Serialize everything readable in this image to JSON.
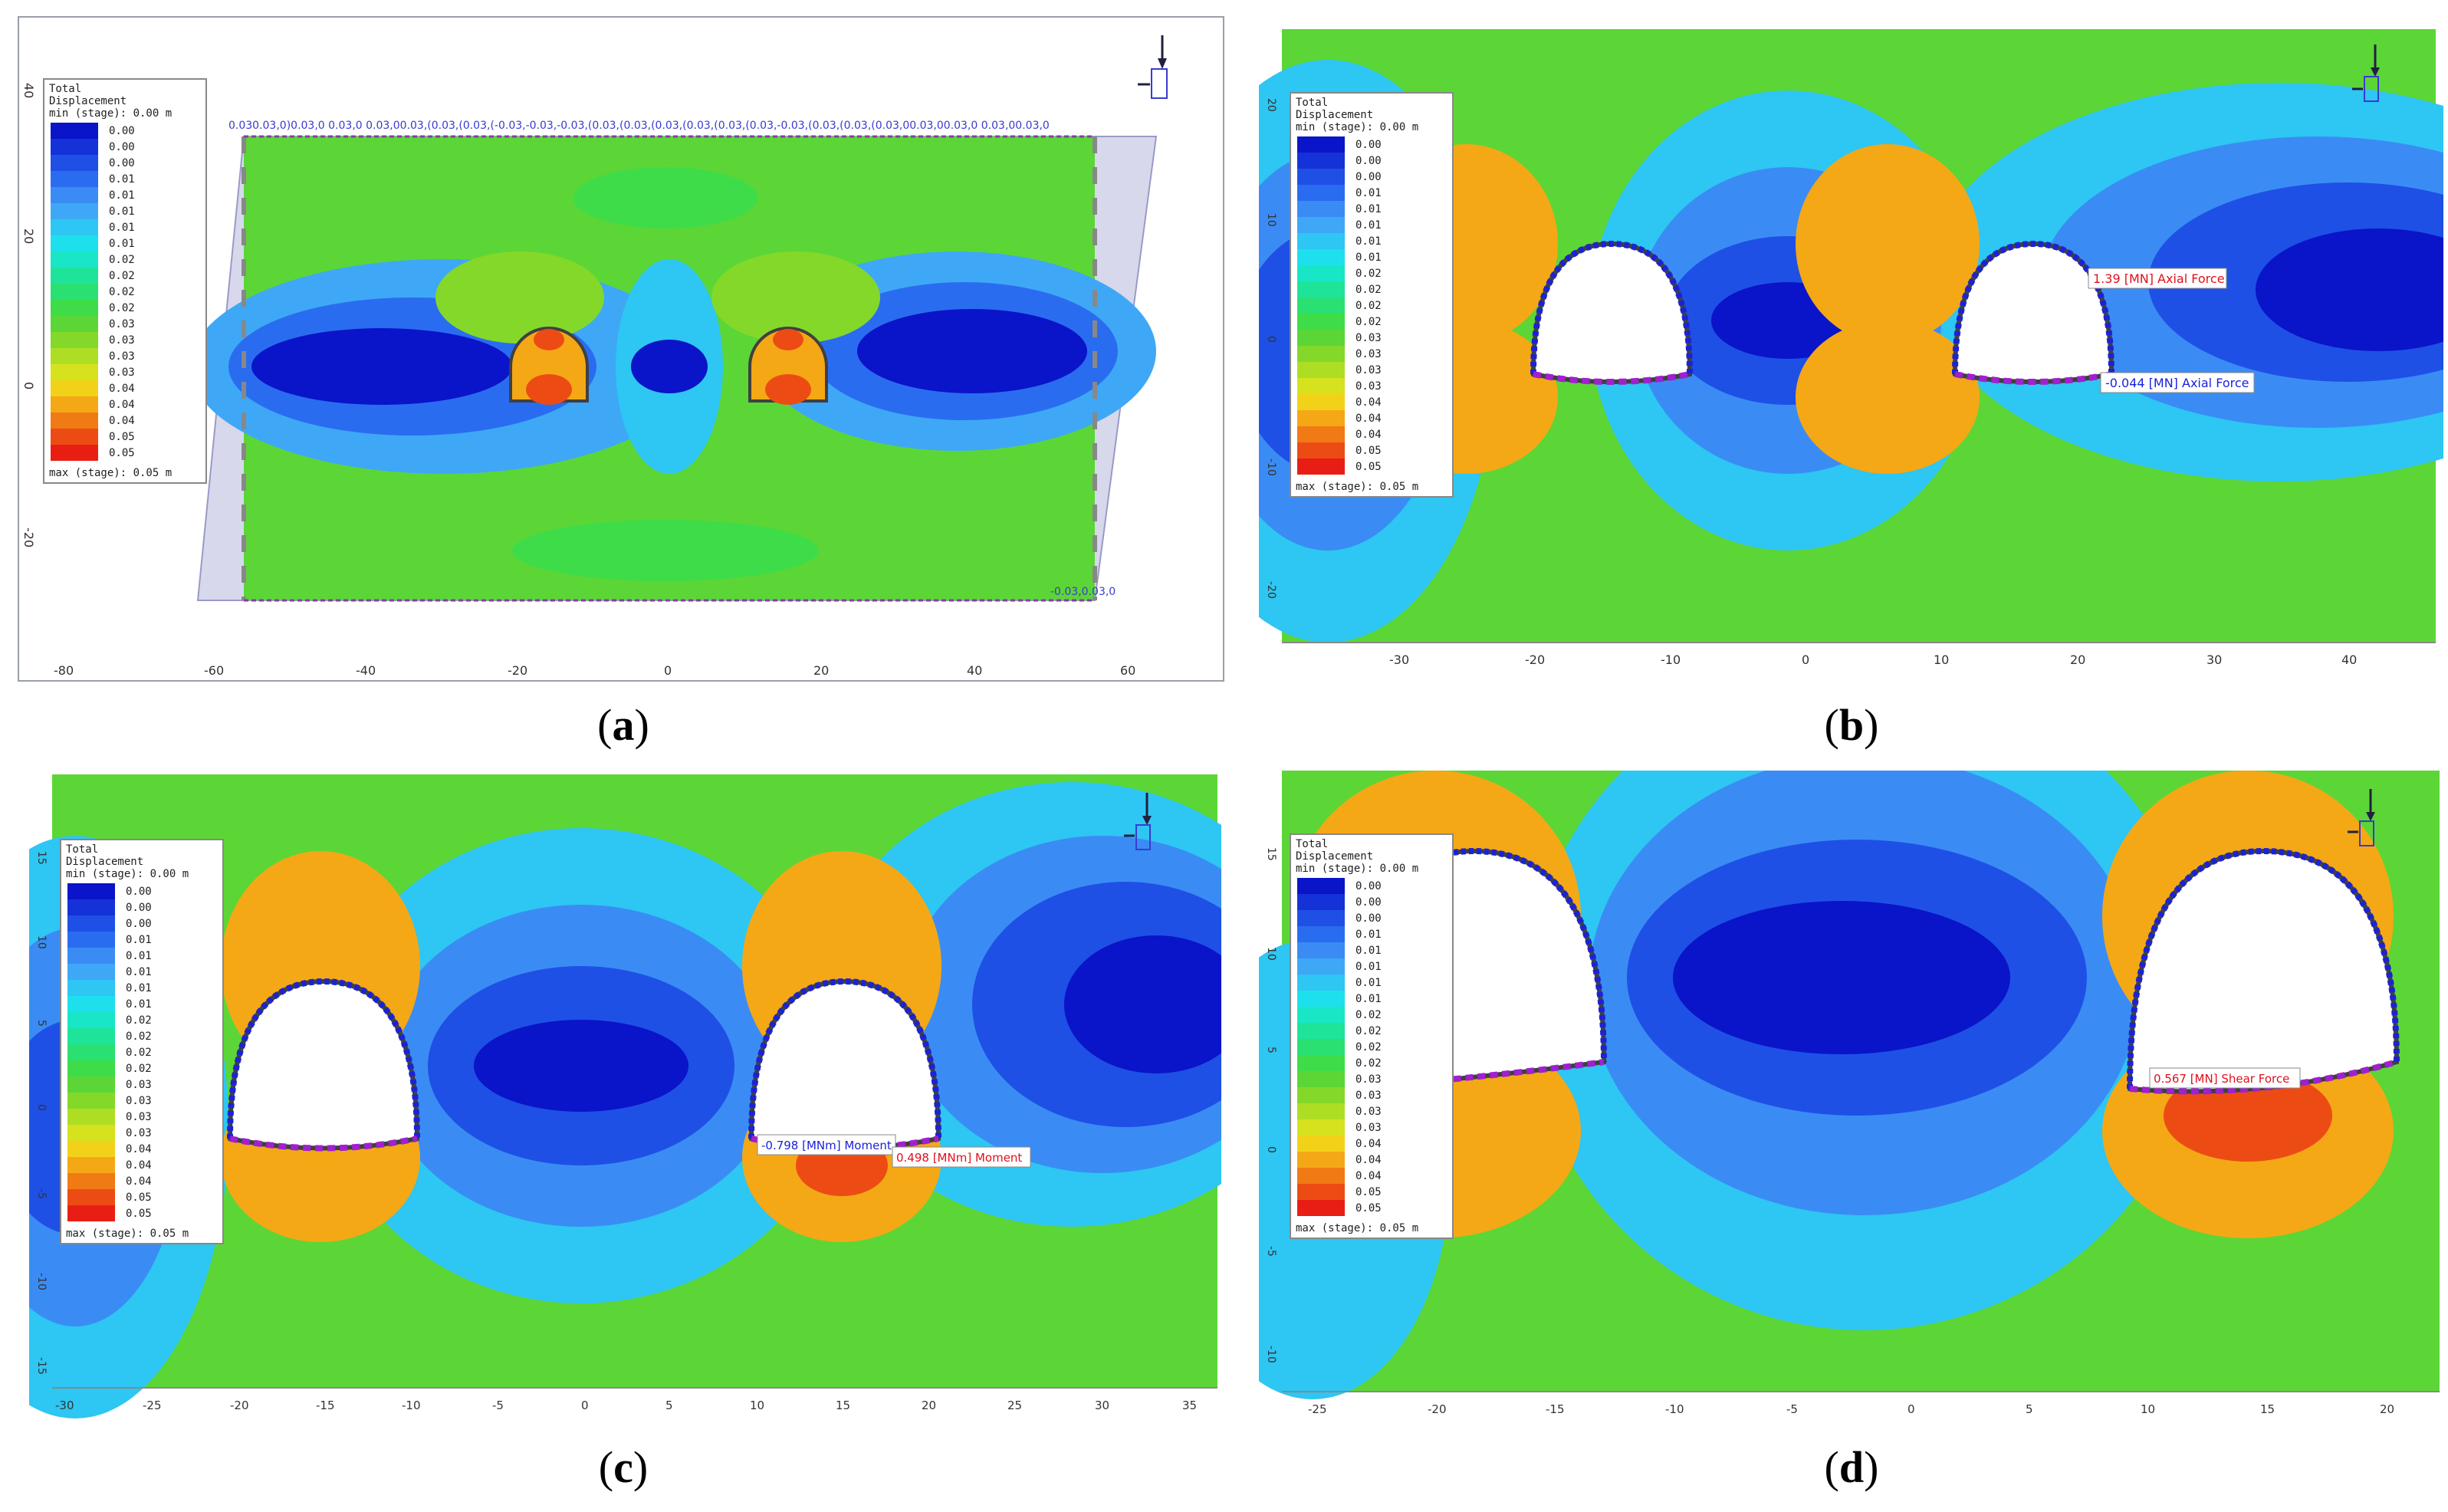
{
  "legend": {
    "title_lines": [
      "Total",
      "Displacement"
    ],
    "min_text": "min (stage): 0.00 m",
    "max_text": "max (stage): 0.05 m",
    "values": [
      "0.00",
      "0.00",
      "0.00",
      "0.01",
      "0.01",
      "0.01",
      "0.01",
      "0.01",
      "0.02",
      "0.02",
      "0.02",
      "0.02",
      "0.03",
      "0.03",
      "0.03",
      "0.03",
      "0.04",
      "0.04",
      "0.04",
      "0.05",
      "0.05"
    ],
    "colors": [
      "#0a14c8",
      "#1432d8",
      "#1e50e6",
      "#2a6cf0",
      "#3a8cf4",
      "#3ea8f6",
      "#2ec6f2",
      "#1ee0ec",
      "#18e6c6",
      "#1ee49a",
      "#2ae072",
      "#3edc48",
      "#5cd636",
      "#84d82a",
      "#aede24",
      "#d6e21e",
      "#f2d218",
      "#f4a816",
      "#f07a14",
      "#ec4c14",
      "#e81e14"
    ]
  },
  "panels": [
    {
      "id": "a",
      "caption_letter": "a",
      "x_ticks": [
        "-80",
        "-60",
        "-40",
        "-20",
        "0",
        "20",
        "40",
        "60"
      ],
      "y_ticks": [
        "40",
        "20",
        "0",
        "-20"
      ],
      "top_labels": "0.030.03,0)0.03,0 0.03,0 0.03,00.03,(0.03,(0.03,(-0.03,-0.03,-0.03,(0.03,(0.03,(0.03,(0.03,(0.03,(0.03,-0.03,(0.03,(0.03,(0.03,00.03,00.03,0 0.03,00.03,0",
      "bottom_label": "-0.03,0.03,0"
    },
    {
      "id": "b",
      "caption_letter": "b",
      "x_ticks": [
        "-30",
        "-20",
        "-10",
        "0",
        "10",
        "20",
        "30",
        "40"
      ],
      "y_ticks": [
        "20",
        "10",
        "0",
        "-10",
        "-20"
      ],
      "annotations": [
        {
          "text": "1.39 [MN] Axial Force",
          "color": "#e0101c"
        },
        {
          "text": "-0.044 [MN] Axial Force",
          "color": "#1a22d8"
        }
      ]
    },
    {
      "id": "c",
      "caption_letter": "c",
      "x_ticks": [
        "-30",
        "-25",
        "-20",
        "-15",
        "-10",
        "-5",
        "0",
        "5",
        "10",
        "15",
        "20",
        "25",
        "30",
        "35"
      ],
      "y_ticks": [
        "15",
        "10",
        "5",
        "0",
        "-5",
        "-10",
        "-15"
      ],
      "annotations": [
        {
          "text": "-0.798 [MNm] Moment",
          "color": "#1a22d8"
        },
        {
          "text": "0.498 [MNm] Moment",
          "color": "#e0101c"
        }
      ]
    },
    {
      "id": "d",
      "caption_letter": "d",
      "x_ticks": [
        "-25",
        "-20",
        "-15",
        "-10",
        "-5",
        "0",
        "5",
        "10",
        "15",
        "20"
      ],
      "y_ticks": [
        "15",
        "10",
        "5",
        "0",
        "-5",
        "-10"
      ],
      "annotations": [
        {
          "text": "0.567 [MN] Shear Force",
          "color": "#e0101c"
        }
      ]
    }
  ]
}
